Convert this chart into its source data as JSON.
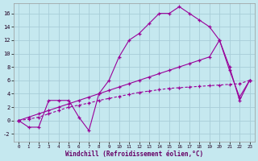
{
  "background_color": "#c5e8ef",
  "grid_color": "#a8cdd8",
  "line_color": "#990099",
  "xlabel": "Windchill (Refroidissement éolien,°C)",
  "xlim": [
    -0.5,
    23.5
  ],
  "ylim": [
    -3.2,
    17.5
  ],
  "xticks": [
    0,
    1,
    2,
    3,
    4,
    5,
    6,
    7,
    8,
    9,
    10,
    11,
    12,
    13,
    14,
    15,
    16,
    17,
    18,
    19,
    20,
    21,
    22,
    23
  ],
  "yticks": [
    -2,
    0,
    2,
    4,
    6,
    8,
    10,
    12,
    14,
    16
  ],
  "series1_x": [
    0,
    1,
    2,
    3,
    4,
    5,
    6,
    7,
    8,
    9,
    10,
    11,
    12,
    13,
    14,
    15,
    16,
    17,
    18,
    19,
    20,
    21,
    22,
    23
  ],
  "series1_y": [
    0,
    -1,
    -1,
    3,
    3,
    3,
    0.5,
    -1.5,
    4,
    6,
    9.5,
    12,
    13,
    14.5,
    16,
    16,
    17,
    16,
    15,
    14,
    12,
    8,
    3,
    6
  ],
  "series2_x": [
    0,
    1,
    2,
    3,
    4,
    5,
    6,
    7,
    8,
    9,
    10,
    11,
    12,
    13,
    14,
    15,
    16,
    17,
    18,
    19,
    20,
    21,
    22,
    23
  ],
  "series2_y": [
    0,
    0.2,
    0.5,
    1.0,
    1.5,
    2.0,
    2.3,
    2.6,
    3.0,
    3.3,
    3.6,
    3.9,
    4.2,
    4.4,
    4.6,
    4.8,
    4.9,
    5.0,
    5.1,
    5.2,
    5.3,
    5.4,
    5.5,
    6.0
  ],
  "series3_x": [
    0,
    1,
    2,
    3,
    4,
    5,
    6,
    7,
    8,
    9,
    10,
    11,
    12,
    13,
    14,
    15,
    16,
    17,
    18,
    19,
    20,
    21,
    22,
    23
  ],
  "series3_y": [
    0,
    0.5,
    1.0,
    1.5,
    2.0,
    2.5,
    3.0,
    3.5,
    4.0,
    4.5,
    5.0,
    5.5,
    6.0,
    6.5,
    7.0,
    7.5,
    8.0,
    8.5,
    9.0,
    9.5,
    12.0,
    7.5,
    3.5,
    6.0
  ]
}
